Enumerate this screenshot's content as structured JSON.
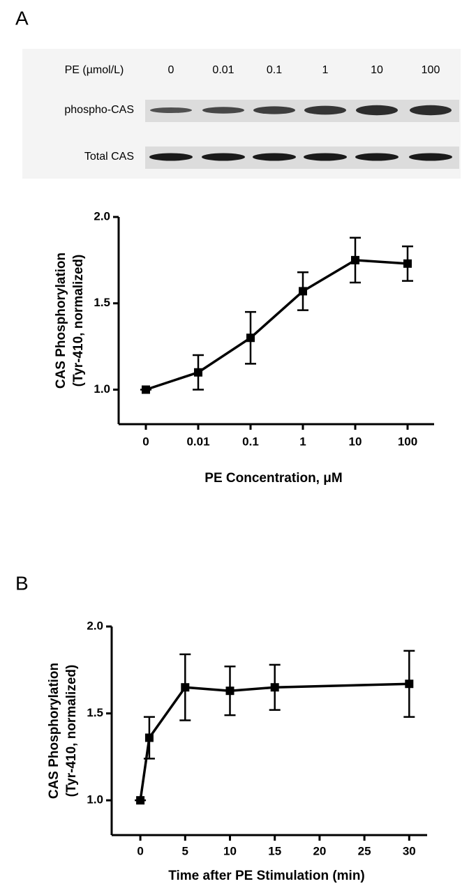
{
  "panels": [
    "A",
    "B"
  ],
  "blot": {
    "header": "PE (µmol/L)",
    "lanes": [
      "0",
      "0.01",
      "0.1",
      "1",
      "10",
      "100"
    ],
    "rows": [
      "phospho-CAS",
      "Total CAS"
    ]
  },
  "chart_data": [
    {
      "type": "line",
      "categories": [
        "0",
        "0.01",
        "0.1",
        "1",
        "10",
        "100"
      ],
      "values": [
        1.0,
        1.1,
        1.3,
        1.57,
        1.75,
        1.73
      ],
      "errors": [
        0,
        0.1,
        0.15,
        0.11,
        0.13,
        0.1
      ],
      "color": "#000000",
      "xlabel": "PE Concentration, μM",
      "ylabel": [
        "CAS Phosphorylation",
        "(Tyr-410, normalized)"
      ],
      "ylim": [
        0.8,
        2.0
      ],
      "yticks": [
        {
          "value": 1,
          "label": "1.0"
        },
        1.5,
        {
          "value": 2,
          "label": "2.0"
        }
      ]
    },
    {
      "type": "line",
      "x": [
        0,
        1,
        5,
        10,
        15,
        30
      ],
      "values": [
        1.0,
        1.36,
        1.65,
        1.63,
        1.65,
        1.67
      ],
      "errors": [
        0,
        0.12,
        0.19,
        0.14,
        0.13,
        0.19
      ],
      "color": "#000000",
      "xlabel": "Time after PE Stimulation (min)",
      "ylabel": [
        "CAS Phosphorylation",
        "(Tyr-410, normalized)"
      ],
      "xlim": [
        -3.2,
        32
      ],
      "xticks": [
        0,
        5,
        10,
        15,
        20,
        25,
        30
      ],
      "ylim": [
        0.8,
        2.0
      ],
      "yticks": [
        {
          "value": 1,
          "label": "1.0"
        },
        1.5,
        {
          "value": 2,
          "label": "2.0"
        }
      ]
    }
  ]
}
